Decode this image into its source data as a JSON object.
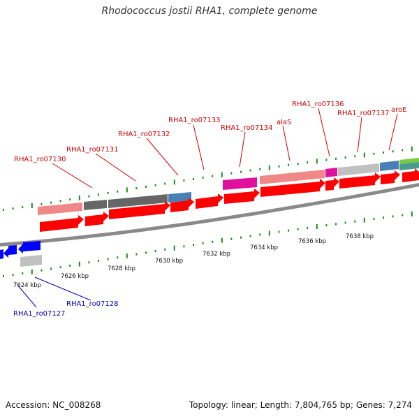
{
  "title": "Rhodococcus jostii RHA1, complete genome",
  "footer": {
    "accession": "Accession: NC_008268",
    "summary": "Topology: linear; Length: 7,804,765 bp; Genes: 7,274"
  },
  "colors": {
    "forward_arrow": "#ff0000",
    "reverse_arrow": "#0000ff",
    "tick": "#1a8a1a",
    "axis": "#8a8a8a",
    "label_forward": "#cc0000",
    "label_reverse": "#0000b4"
  },
  "kbp_labels": [
    "7624 kbp",
    "7626 kbp",
    "7628 kbp",
    "7630 kbp",
    "7632 kbp",
    "7634 kbp",
    "7636 kbp",
    "7638 kbp"
  ],
  "gene_labels_forward": [
    "RHA1_ro07130",
    "RHA1_ro07131",
    "RHA1_ro07132",
    "RHA1_ro07133",
    "RHA1_ro07134",
    "alaS",
    "RHA1_ro07136",
    "RHA1_ro07137",
    "aroE"
  ],
  "gene_labels_reverse": [
    "RHA1_ro07127",
    "RHA1_ro07128"
  ]
}
